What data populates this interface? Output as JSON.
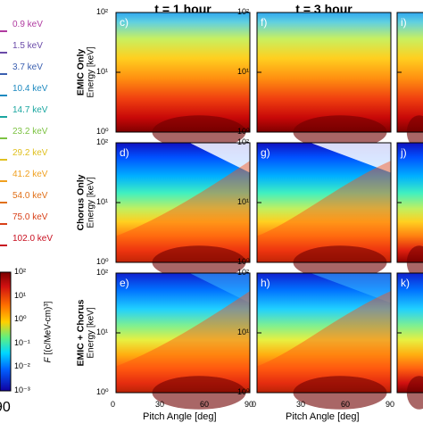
{
  "columns": [
    {
      "title": "t = 1 hour"
    },
    {
      "title": "t = 3 hour"
    }
  ],
  "rows": [
    {
      "bold": "EMIC Only",
      "normal": "Energy [keV]"
    },
    {
      "bold": "Chorus Only",
      "normal": "Energy [keV]"
    },
    {
      "bold": "EMIC + Chorus",
      "normal": "Energy [keV]"
    }
  ],
  "panel_letters": [
    "c)",
    "f)",
    "i)",
    "d)",
    "g)",
    "j)",
    "e)",
    "h)",
    "k)"
  ],
  "energy_legend": [
    {
      "label": "0.9 keV",
      "color": "#b03aa0"
    },
    {
      "label": "1.5 keV",
      "color": "#6a4aa8"
    },
    {
      "label": "3.7 keV",
      "color": "#3a5fb0"
    },
    {
      "label": "10.4 keV",
      "color": "#1f8ac0"
    },
    {
      "label": "14.7 keV",
      "color": "#1aa6a0"
    },
    {
      "label": "23.2 keV",
      "color": "#7cc242"
    },
    {
      "label": "29.2 keV",
      "color": "#e0c020"
    },
    {
      "label": "41.2 keV",
      "color": "#f0a020"
    },
    {
      "label": "54.0 keV",
      "color": "#e07018"
    },
    {
      "label": "75.0 keV",
      "color": "#d84018"
    },
    {
      "label": "102.0 keV",
      "color": "#c81020"
    }
  ],
  "colorbar": {
    "label_main": "F",
    "label_units": "[(c/MeV-cm)³]",
    "tick_labels": [
      "10²",
      "10¹",
      "10⁰",
      "10⁻¹",
      "10⁻²",
      "10⁻³"
    ]
  },
  "y_ticks": [
    "10²",
    "10¹",
    "10⁰"
  ],
  "x_ticks": [
    "0",
    "30",
    "60",
    "90"
  ],
  "x_label": "Pitch Angle [deg]",
  "left_x_tick": "90",
  "chart_data": {
    "type": "heatmap",
    "xlabel": "Pitch Angle [deg]",
    "ylabel": "Energy [keV]",
    "xlim": [
      0,
      90
    ],
    "ylim": [
      1,
      100
    ],
    "y_scale": "log",
    "colorbar_range": [
      0.001,
      100
    ],
    "colorbar_scale": "log",
    "panels": [
      "c)",
      "d)",
      "e)",
      "f)",
      "g)",
      "h)",
      "i)",
      "j)",
      "k)"
    ]
  }
}
